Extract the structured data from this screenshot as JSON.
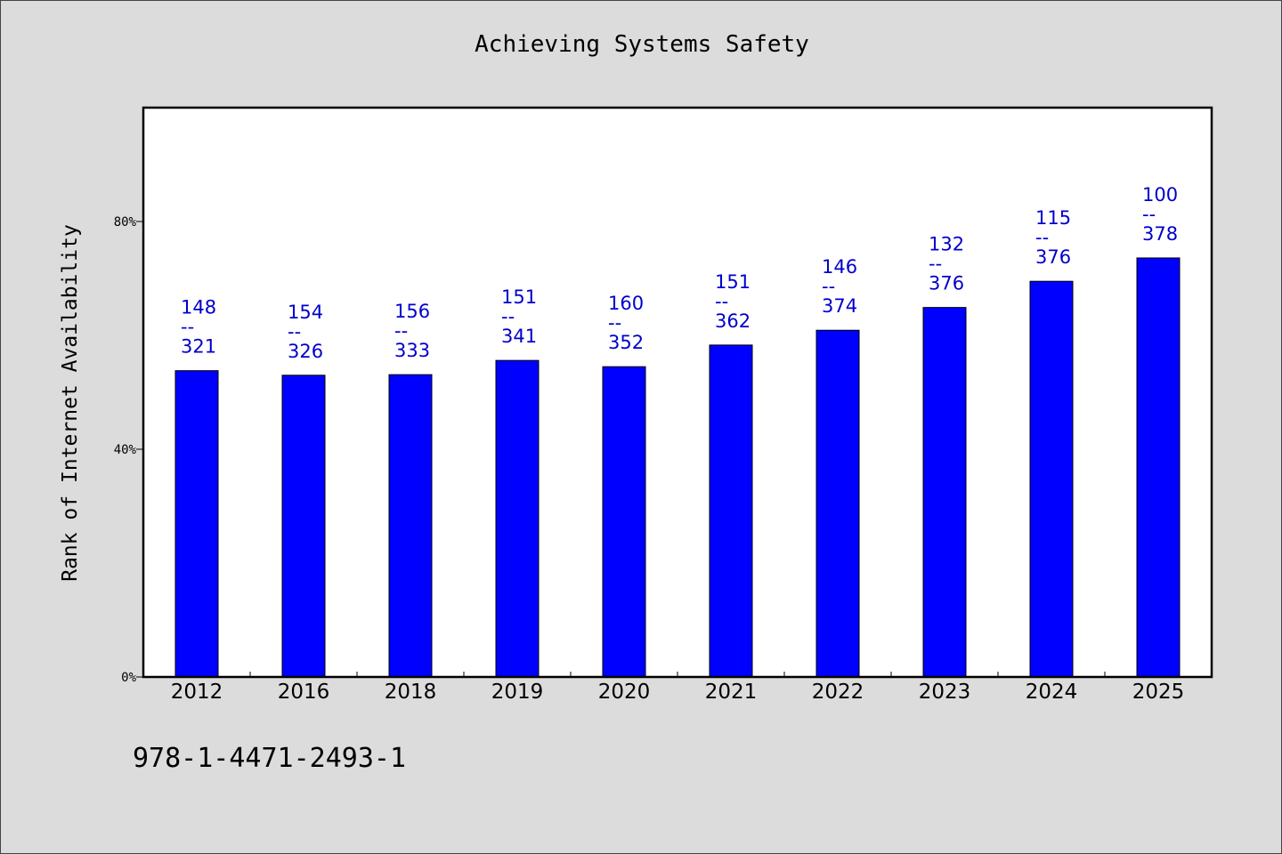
{
  "chart_data": {
    "type": "bar",
    "title": "Achieving Systems Safety",
    "xlabel": "",
    "ylabel": "Rank of Internet Availability",
    "ylim": [
      0,
      100
    ],
    "yticks": [
      0,
      40,
      80
    ],
    "ytick_labels": [
      "0%",
      "40%",
      "80%"
    ],
    "grid": false,
    "bar_color": "#0000ff",
    "label_color": "#0000cc",
    "categories": [
      "2012",
      "2016",
      "2018",
      "2019",
      "2020",
      "2021",
      "2022",
      "2023",
      "2024",
      "2025"
    ],
    "values": [
      53.8,
      53.0,
      53.1,
      55.6,
      54.5,
      58.3,
      60.9,
      64.9,
      69.5,
      73.6
    ],
    "data_labels": [
      {
        "top": "148",
        "sep": "--",
        "bottom": "321"
      },
      {
        "top": "154",
        "sep": "--",
        "bottom": "326"
      },
      {
        "top": "156",
        "sep": "--",
        "bottom": "333"
      },
      {
        "top": "151",
        "sep": "--",
        "bottom": "341"
      },
      {
        "top": "160",
        "sep": "--",
        "bottom": "352"
      },
      {
        "top": "151",
        "sep": "--",
        "bottom": "362"
      },
      {
        "top": "146",
        "sep": "--",
        "bottom": "374"
      },
      {
        "top": "132",
        "sep": "--",
        "bottom": "376"
      },
      {
        "top": "115",
        "sep": "--",
        "bottom": "376"
      },
      {
        "top": "100",
        "sep": "--",
        "bottom": "378"
      }
    ]
  },
  "footer": {
    "code": "978-1-4471-2493-1"
  }
}
